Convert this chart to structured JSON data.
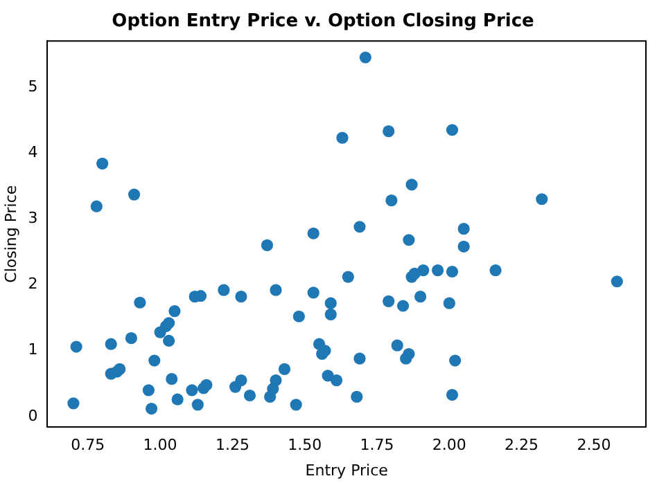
{
  "chart_data": {
    "type": "scatter",
    "title": "Option Entry Price v. Option Closing Price",
    "xlabel": "Entry Price",
    "ylabel": "Closing Price",
    "marker": "circle",
    "grid": false,
    "legend": false,
    "xlim": [
      0.61,
      2.68
    ],
    "ylim": [
      -0.16,
      5.7
    ],
    "xticks": [
      {
        "value": 0.75,
        "label": "0.75"
      },
      {
        "value": 1,
        "label": "1.00"
      },
      {
        "value": 1.25,
        "label": "1.25"
      },
      {
        "value": 1.5,
        "label": "1.50"
      },
      {
        "value": 1.75,
        "label": "1.75"
      },
      {
        "value": 2,
        "label": "2.00"
      },
      {
        "value": 2.25,
        "label": "2.25"
      },
      {
        "value": 2.5,
        "label": "2.50"
      }
    ],
    "yticks": [
      0,
      1,
      2,
      3,
      4,
      5
    ],
    "series": [
      {
        "color": "#1f77b4",
        "x": [
          0.7,
          0.71,
          0.78,
          0.8,
          0.83,
          0.83,
          0.85,
          0.86,
          0.9,
          0.91,
          0.93,
          0.96,
          0.97,
          0.98,
          1.0,
          1.02,
          1.03,
          1.03,
          1.04,
          1.05,
          1.06,
          1.11,
          1.12,
          1.13,
          1.14,
          1.15,
          1.16,
          1.22,
          1.26,
          1.28,
          1.28,
          1.31,
          1.37,
          1.38,
          1.39,
          1.4,
          1.4,
          1.43,
          1.47,
          1.48,
          1.53,
          1.53,
          1.55,
          1.56,
          1.57,
          1.58,
          1.59,
          1.59,
          1.61,
          1.63,
          1.65,
          1.68,
          1.69,
          1.69,
          1.71,
          1.79,
          1.79,
          1.8,
          1.82,
          1.84,
          1.85,
          1.86,
          1.86,
          1.87,
          1.87,
          1.88,
          1.9,
          1.91,
          1.96,
          2.0,
          2.01,
          2.01,
          2.01,
          2.02,
          2.05,
          2.05,
          2.16,
          2.32,
          2.58
        ],
        "values": [
          0.2,
          1.06,
          3.19,
          3.84,
          1.1,
          0.65,
          0.68,
          0.72,
          1.19,
          3.37,
          1.73,
          0.4,
          0.12,
          0.85,
          1.28,
          1.37,
          1.42,
          1.15,
          0.57,
          1.6,
          0.26,
          0.4,
          1.82,
          0.18,
          1.83,
          0.43,
          0.48,
          1.92,
          0.45,
          0.55,
          1.82,
          0.32,
          2.6,
          0.3,
          0.42,
          1.92,
          0.55,
          0.72,
          0.18,
          1.52,
          2.78,
          1.88,
          1.1,
          0.95,
          1.0,
          0.62,
          1.72,
          1.55,
          0.55,
          4.23,
          2.12,
          0.3,
          0.88,
          2.88,
          5.45,
          4.33,
          1.75,
          3.28,
          1.08,
          1.68,
          0.88,
          0.95,
          2.68,
          3.52,
          2.12,
          2.17,
          1.82,
          2.22,
          2.22,
          1.72,
          2.2,
          4.35,
          0.33,
          0.85,
          2.58,
          2.85,
          2.22,
          3.3,
          2.05
        ]
      }
    ]
  }
}
